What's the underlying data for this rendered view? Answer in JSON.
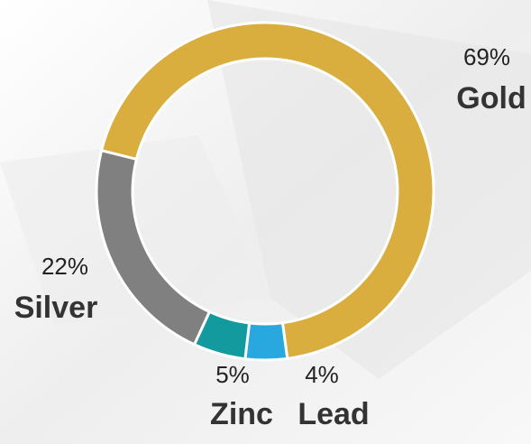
{
  "chart_data": {
    "type": "donut",
    "categories": [
      "Gold",
      "Lead",
      "Zinc",
      "Silver"
    ],
    "values": [
      69,
      4,
      5,
      22
    ],
    "value_labels": [
      "69%",
      "4%",
      "5%",
      "22%"
    ],
    "colors": [
      "#d9ae3e",
      "#29a8e0",
      "#139a9e",
      "#808080"
    ]
  }
}
